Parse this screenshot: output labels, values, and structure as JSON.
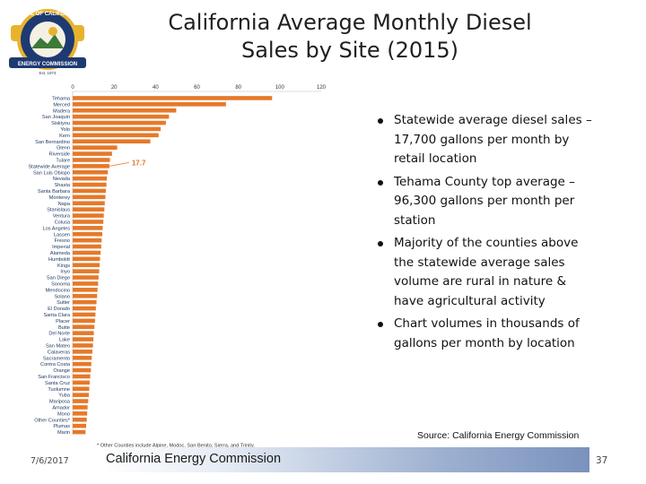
{
  "slide": {
    "title_line1": "California Average Monthly Diesel",
    "title_line2": "Sales by Site (2015)",
    "bullets": [
      "Statewide average diesel sales – 17,700 gallons per month by retail location",
      "Tehama County top average – 96,300 gallons per month per station",
      "Majority of the counties above the statewide average sales volume are rural in nature & have agricultural activity",
      "Chart volumes in thousands of gallons per month by location"
    ],
    "source": "Source: California Energy Commission",
    "footer_org": "California Energy Commission",
    "footer_date": "7/6/2017",
    "page_number": "37"
  },
  "logo": {
    "arc_top": "STATE OF CALIFORNIA",
    "arc_bottom": "ENERGY COMMISSION",
    "year": "Est. 1974"
  },
  "colors": {
    "bar": "#e5792a",
    "marker": "#e5792a",
    "footer_blue": "#7a92bd",
    "seal_gold": "#e8b32c",
    "seal_blue": "#1e3a72"
  },
  "chart_data": {
    "type": "bar",
    "orientation": "horizontal",
    "title": "",
    "xlabel": "",
    "ylabel": "",
    "xlim": [
      0,
      120
    ],
    "x_ticks": [
      "0",
      "20",
      "40",
      "60",
      "80",
      "100",
      "120"
    ],
    "axis_position": "top",
    "grid": false,
    "categories": [
      "Tehama",
      "Merced",
      "Madera",
      "San Joaquin",
      "Siskiyou",
      "Yolo",
      "Kern",
      "San Bernardino",
      "Glenn",
      "Riverside",
      "Tulare",
      "Statewide Average",
      "San Luis Obispo",
      "Nevada",
      "Shasta",
      "Santa Barbara",
      "Monterey",
      "Napa",
      "Stanislaus",
      "Ventura",
      "Colusa",
      "Los Angeles",
      "Lassen",
      "Fresno",
      "Imperial",
      "Alameda",
      "Humboldt",
      "Kings",
      "Inyo",
      "San Diego",
      "Sonoma",
      "Mendocino",
      "Solano",
      "Sutter",
      "El Dorado",
      "Santa Clara",
      "Placer",
      "Butte",
      "Del Norte",
      "Lake",
      "San Mateo",
      "Calaveras",
      "Sacramento",
      "Contra Costa",
      "Orange",
      "San Francisco",
      "Santa Cruz",
      "Tuolumne",
      "Yuba",
      "Mariposa",
      "Amador",
      "Mono",
      "Other Counties*",
      "Plumas",
      "Marin"
    ],
    "values": [
      96.3,
      74,
      50,
      46.5,
      45,
      42.5,
      41.5,
      37.5,
      21.5,
      19,
      18,
      17.7,
      17,
      16.5,
      16.3,
      16,
      15.8,
      15.5,
      15.3,
      15,
      14.8,
      14.5,
      14.3,
      14,
      13.8,
      13.5,
      13.2,
      13,
      12.8,
      12.5,
      12.3,
      12,
      11.8,
      11.5,
      11.2,
      11,
      10.8,
      10.5,
      10.2,
      10,
      9.8,
      9.5,
      9.2,
      9,
      8.8,
      8.5,
      8.2,
      8,
      7.8,
      7.5,
      7.2,
      7,
      6.8,
      6.5,
      6.2
    ],
    "highlight": {
      "category": "Statewide Average",
      "label": "17.7"
    },
    "footnote": "* Other Counties include Alpine, Modoc, San Benito, Sierra, and Trinity."
  }
}
